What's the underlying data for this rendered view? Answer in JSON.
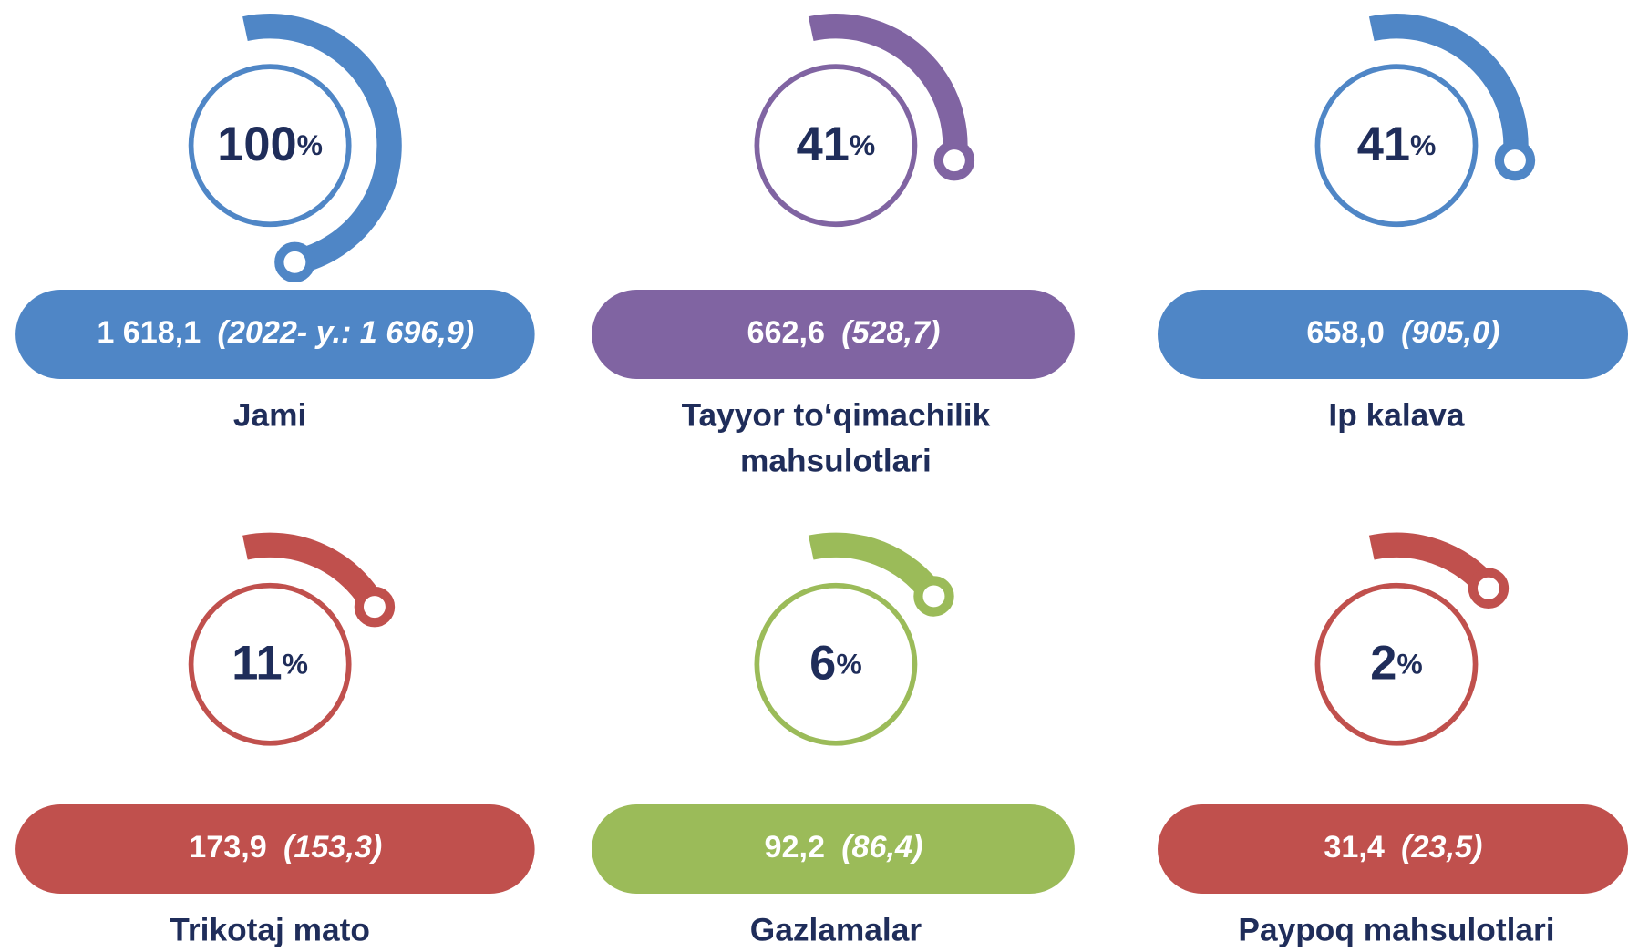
{
  "items": [
    {
      "percent": 100,
      "unit": "%",
      "value": "1 618,1",
      "prior": "(2022- y.: 1 696,9)",
      "label": [
        "Jami"
      ],
      "color": "#4f86c6"
    },
    {
      "percent": 41,
      "unit": "%",
      "value": "662,6",
      "prior": "(528,7)",
      "label": [
        "Tayyor to‘qimachilik",
        "mahsulotlari"
      ],
      "color": "#8064a2"
    },
    {
      "percent": 41,
      "unit": "%",
      "value": "658,0",
      "prior": "(905,0)",
      "label": [
        "Ip kalava"
      ],
      "color": "#4f86c6"
    },
    {
      "percent": 11,
      "unit": "%",
      "value": "173,9",
      "prior": "(153,3)",
      "label": [
        "Trikotaj mato"
      ],
      "color": "#c0504d"
    },
    {
      "percent": 6,
      "unit": "%",
      "value": "92,2",
      "prior": "(86,4)",
      "label": [
        "Gazlamalar"
      ],
      "color": "#9bbb59"
    },
    {
      "percent": 2,
      "unit": "%",
      "value": "31,4",
      "prior": "(23,5)",
      "label": [
        "Paypoq mahsulotlari"
      ],
      "color": "#c0504d"
    }
  ]
}
